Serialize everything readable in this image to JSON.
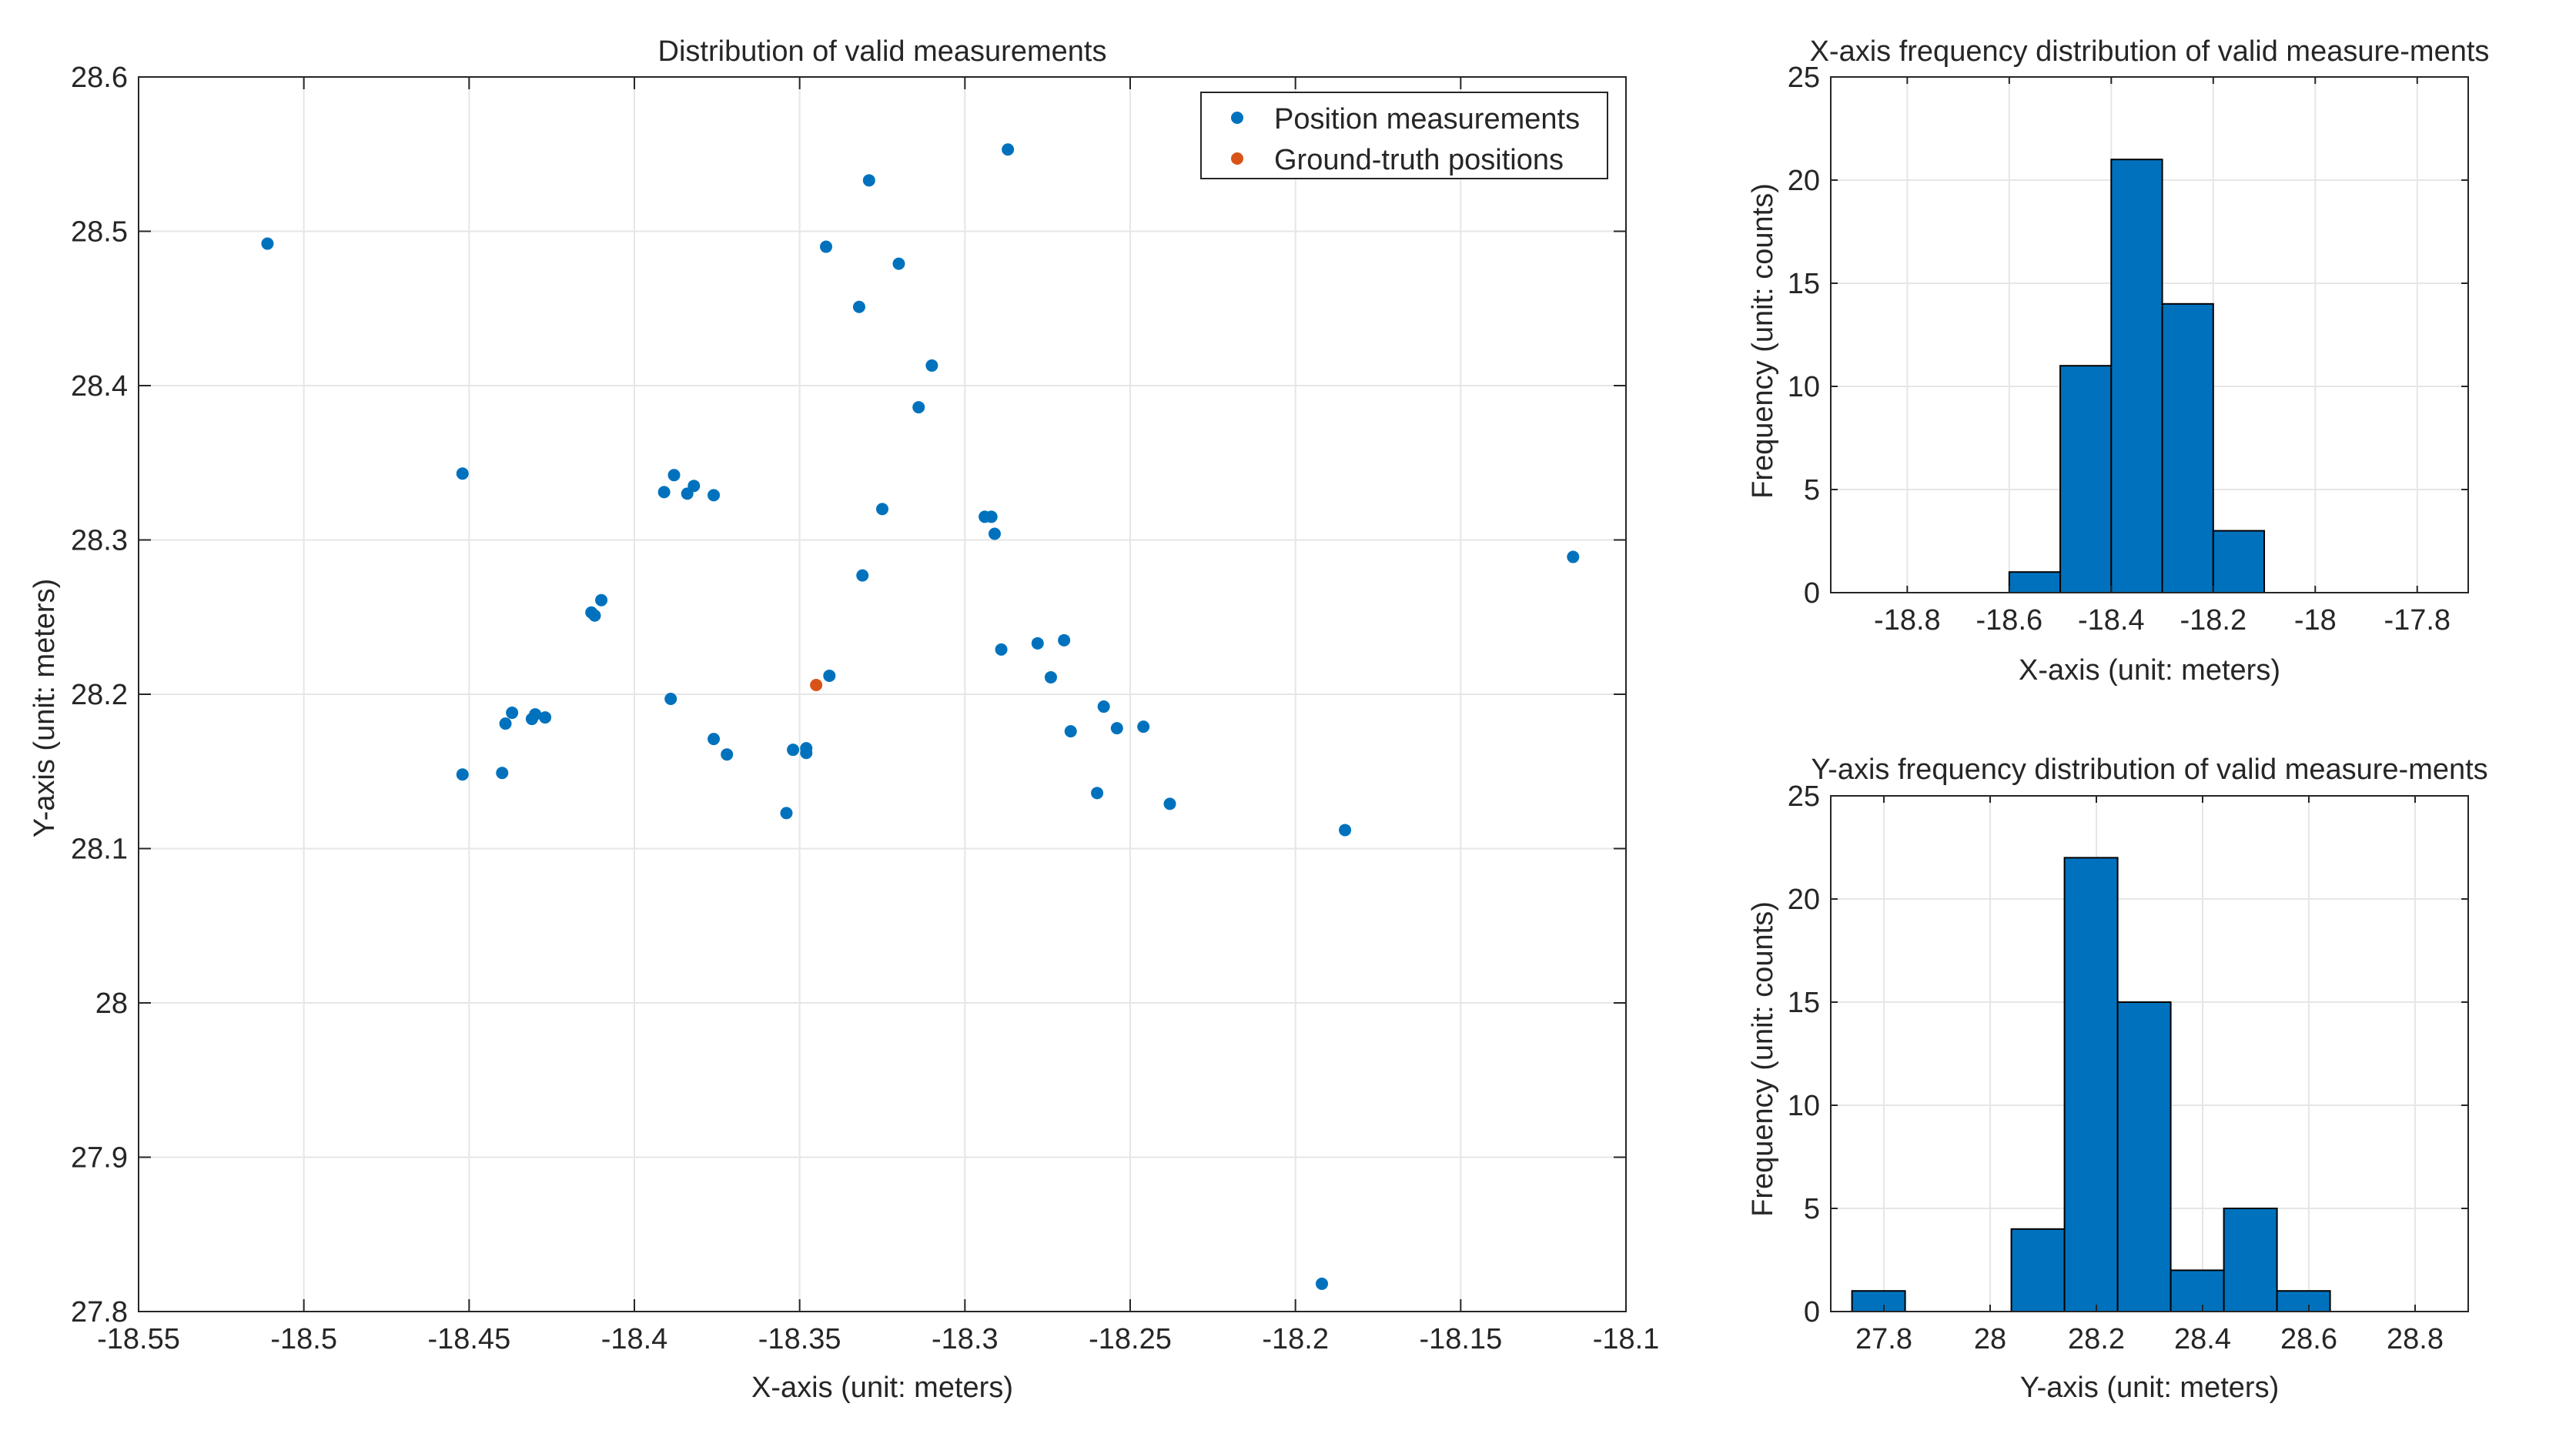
{
  "chart_data": [
    {
      "type": "scatter",
      "title": "Distribution of valid measurements",
      "xlabel": "X-axis (unit: meters)",
      "ylabel": "Y-axis (unit: meters)",
      "xlim": [
        -18.55,
        -18.1
      ],
      "ylim": [
        27.8,
        28.6
      ],
      "xticks": [
        -18.55,
        -18.5,
        -18.45,
        -18.4,
        -18.35,
        -18.3,
        -18.25,
        -18.2,
        -18.15,
        -18.1
      ],
      "xtick_labels": [
        "-18.55",
        "-18.5",
        "-18.45",
        "-18.4",
        "-18.35",
        "-18.3",
        "-18.25",
        "-18.2",
        "-18.15",
        "-18.1"
      ],
      "yticks": [
        27.8,
        27.9,
        28,
        28.1,
        28.2,
        28.3,
        28.4,
        28.5,
        28.6
      ],
      "ytick_labels": [
        "27.8",
        "27.9",
        "28",
        "28.1",
        "28.2",
        "28.3",
        "28.4",
        "28.5",
        "28.6"
      ],
      "grid": true,
      "legend_position": "top-right",
      "series": [
        {
          "name": "Position measurements",
          "color": "#0072BD",
          "points": [
            [
              -18.511,
              28.492
            ],
            [
              -18.452,
              28.343
            ],
            [
              -18.452,
              28.148
            ],
            [
              -18.44,
              28.149
            ],
            [
              -18.439,
              28.181
            ],
            [
              -18.437,
              28.188
            ],
            [
              -18.431,
              28.184
            ],
            [
              -18.43,
              28.187
            ],
            [
              -18.427,
              28.185
            ],
            [
              -18.413,
              28.253
            ],
            [
              -18.412,
              28.251
            ],
            [
              -18.41,
              28.261
            ],
            [
              -18.391,
              28.331
            ],
            [
              -18.388,
              28.342
            ],
            [
              -18.384,
              28.33
            ],
            [
              -18.382,
              28.335
            ],
            [
              -18.376,
              28.329
            ],
            [
              -18.389,
              28.197
            ],
            [
              -18.376,
              28.171
            ],
            [
              -18.372,
              28.161
            ],
            [
              -18.354,
              28.123
            ],
            [
              -18.352,
              28.164
            ],
            [
              -18.348,
              28.162
            ],
            [
              -18.348,
              28.165
            ],
            [
              -18.341,
              28.212
            ],
            [
              -18.342,
              28.49
            ],
            [
              -18.329,
              28.533
            ],
            [
              -18.32,
              28.479
            ],
            [
              -18.332,
              28.451
            ],
            [
              -18.31,
              28.413
            ],
            [
              -18.314,
              28.386
            ],
            [
              -18.325,
              28.32
            ],
            [
              -18.331,
              28.277
            ],
            [
              -18.294,
              28.315
            ],
            [
              -18.292,
              28.315
            ],
            [
              -18.291,
              28.304
            ],
            [
              -18.287,
              28.553
            ],
            [
              -18.289,
              28.229
            ],
            [
              -18.278,
              28.233
            ],
            [
              -18.27,
              28.235
            ],
            [
              -18.274,
              28.211
            ],
            [
              -18.268,
              28.176
            ],
            [
              -18.258,
              28.192
            ],
            [
              -18.254,
              28.178
            ],
            [
              -18.246,
              28.179
            ],
            [
              -18.26,
              28.136
            ],
            [
              -18.238,
              28.129
            ],
            [
              -18.185,
              28.112
            ],
            [
              -18.192,
              27.818
            ],
            [
              -18.116,
              28.289
            ]
          ]
        },
        {
          "name": "Ground-truth positions",
          "color": "#D95319",
          "points": [
            [
              -18.345,
              28.206
            ]
          ]
        }
      ]
    },
    {
      "type": "bar",
      "title": "X-axis frequency distribution of valid measure-ments",
      "xlabel": "X-axis (unit: meters)",
      "ylabel": "Frequency (unit: counts)",
      "xlim": [
        -18.95,
        -17.7
      ],
      "ylim": [
        0,
        25
      ],
      "xticks": [
        -18.8,
        -18.6,
        -18.4,
        -18.2,
        -18,
        -17.8
      ],
      "xtick_labels": [
        "-18.8",
        "-18.6",
        "-18.4",
        "-18.2",
        "-18",
        "-17.8"
      ],
      "yticks": [
        0,
        5,
        10,
        15,
        20,
        25
      ],
      "ytick_labels": [
        "0",
        "5",
        "10",
        "15",
        "20",
        "25"
      ],
      "bin_edges": [
        -18.6,
        -18.5,
        -18.4,
        -18.3,
        -18.2,
        -18.1
      ],
      "values": [
        1,
        11,
        21,
        14,
        3
      ],
      "color": "#0072BD"
    },
    {
      "type": "bar",
      "title": "Y-axis frequency distribution of valid measure-ments",
      "xlabel": "Y-axis (unit: meters)",
      "ylabel": "Frequency (unit: counts)",
      "xlim": [
        27.7,
        28.9
      ],
      "ylim": [
        0,
        25
      ],
      "xticks": [
        27.8,
        28,
        28.2,
        28.4,
        28.6,
        28.8
      ],
      "xtick_labels": [
        "27.8",
        "28",
        "28.2",
        "28.4",
        "28.6",
        "28.8"
      ],
      "yticks": [
        0,
        5,
        10,
        15,
        20,
        25
      ],
      "ytick_labels": [
        "0",
        "5",
        "10",
        "15",
        "20",
        "25"
      ],
      "bin_edges": [
        27.74,
        27.84,
        27.94,
        28.04,
        28.14,
        28.24,
        28.34,
        28.44,
        28.54,
        28.64
      ],
      "values": [
        1,
        0,
        0,
        4,
        22,
        15,
        2,
        5,
        1
      ],
      "color": "#0072BD"
    }
  ]
}
